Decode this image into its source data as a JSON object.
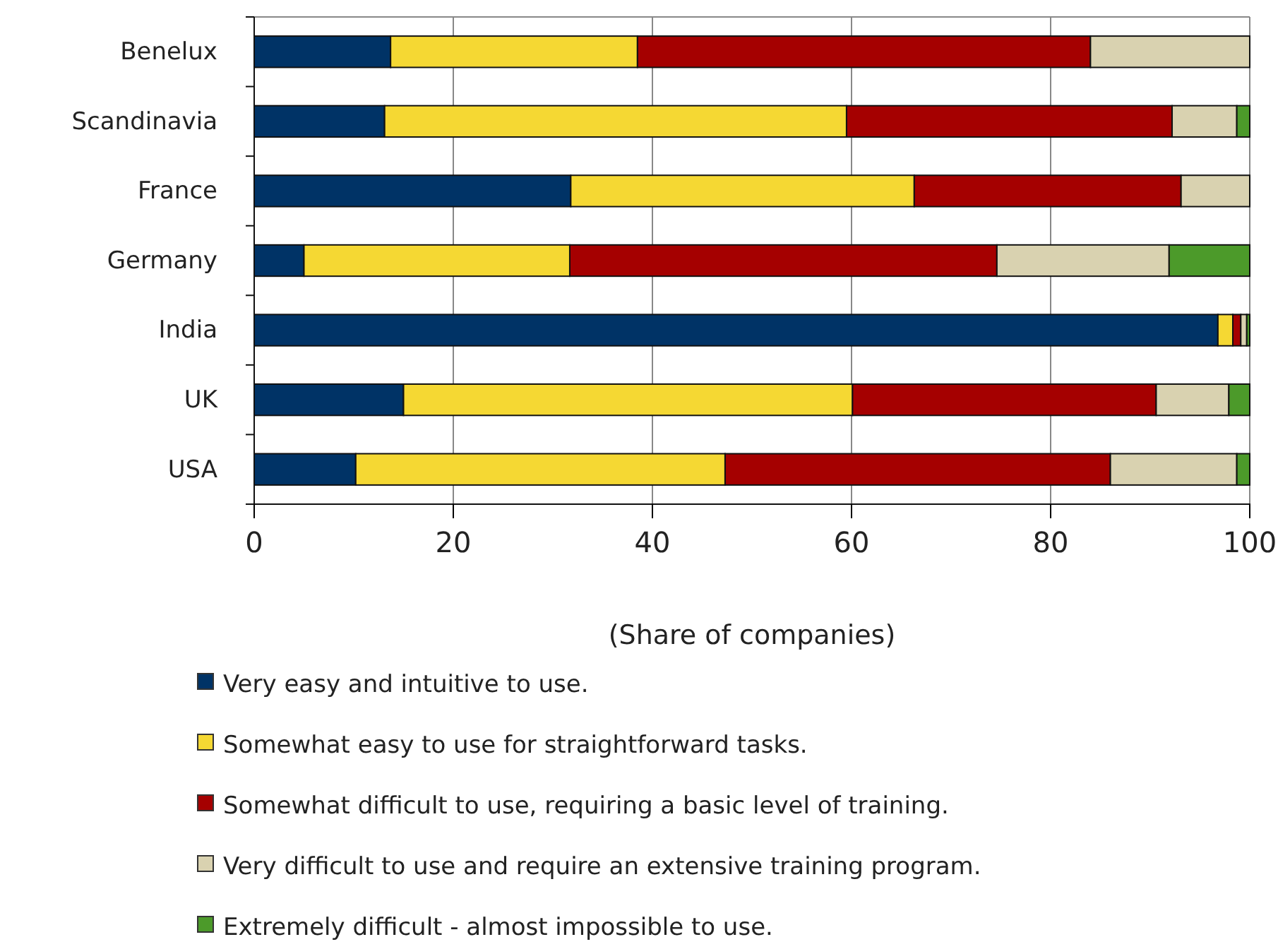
{
  "chart_data": {
    "type": "bar",
    "orientation": "horizontal",
    "stacked": true,
    "xlabel": "(Share of companies)",
    "categories": [
      "Benelux",
      "Scandinavia",
      "France",
      "Germany",
      "India",
      "UK",
      "USA"
    ],
    "series": [
      {
        "name": "Very easy and intuitive to use.",
        "color": "#003366",
        "values": [
          13.7,
          13.1,
          31.8,
          5.0,
          96.8,
          15.0,
          10.2
        ]
      },
      {
        "name": "Somewhat easy to use for straightforward tasks.",
        "color": "#f5d833",
        "values": [
          24.8,
          46.4,
          34.5,
          26.7,
          1.5,
          45.1,
          37.1
        ]
      },
      {
        "name": "Somewhat difficult to use, requiring a basic level of training.",
        "color": "#a50000",
        "values": [
          45.5,
          32.7,
          26.8,
          42.9,
          0.8,
          30.5,
          38.7
        ]
      },
      {
        "name": "Very difficult to use and require an extensive training program.",
        "color": "#d9d2b0",
        "values": [
          16.0,
          6.5,
          6.9,
          17.3,
          0.6,
          7.3,
          12.7
        ]
      },
      {
        "name": "Extremely difficult - almost impossible to use.",
        "color": "#4c9a2a",
        "values": [
          0,
          1.3,
          0,
          8.1,
          0.3,
          2.1,
          1.3
        ]
      }
    ],
    "xlim": [
      0,
      100
    ],
    "xticks": [
      0,
      20,
      40,
      60,
      80,
      100
    ],
    "grid": "x",
    "legend": "bottom"
  }
}
